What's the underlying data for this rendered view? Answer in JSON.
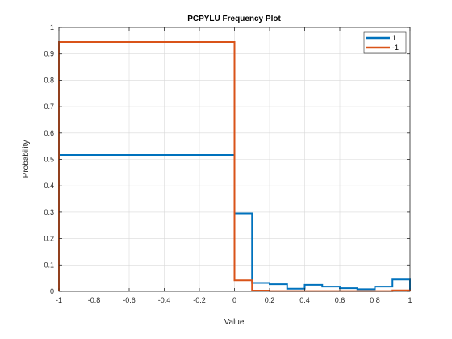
{
  "chart_data": {
    "type": "line",
    "title": "PCPYLU Frequency Plot",
    "xlabel": "Value",
    "ylabel": "Probability",
    "xlim": [
      -1,
      1
    ],
    "ylim": [
      0,
      1
    ],
    "xticks": [
      -1,
      -0.8,
      -0.6,
      -0.4,
      -0.2,
      0,
      0.2,
      0.4,
      0.6,
      0.8,
      1
    ],
    "xtick_labels": [
      "-1",
      "-0.8",
      "-0.6",
      "-0.4",
      "-0.2",
      "0",
      "0.2",
      "0.4",
      "0.6",
      "0.8",
      "1"
    ],
    "yticks": [
      0,
      0.1,
      0.2,
      0.3,
      0.4,
      0.5,
      0.6,
      0.7,
      0.8,
      0.9,
      1
    ],
    "ytick_labels": [
      "0",
      "0.1",
      "0.2",
      "0.3",
      "0.4",
      "0.5",
      "0.6",
      "0.7",
      "0.8",
      "0.9",
      "1"
    ],
    "grid": true,
    "legend_position": "top-right",
    "bin_edges": [
      -1,
      0,
      0.1,
      0.2,
      0.3,
      0.4,
      0.5,
      0.6,
      0.7,
      0.8,
      0.9,
      1
    ],
    "series": [
      {
        "name": "1",
        "color": "#0072BD",
        "values": [
          0.517,
          0.295,
          0.032,
          0.027,
          0.01,
          0.025,
          0.018,
          0.012,
          0.008,
          0.018,
          0.045
        ]
      },
      {
        "name": "-1",
        "color": "#D95319",
        "values": [
          0.945,
          0.042,
          0.003,
          0.001,
          0.001,
          0.001,
          0.001,
          0.001,
          0.001,
          0.001,
          0.004
        ]
      }
    ]
  }
}
